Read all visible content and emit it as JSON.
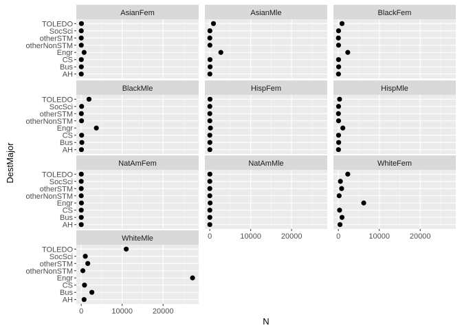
{
  "chart_data": {
    "type": "scatter",
    "facet_layout": "wrap 3 columns",
    "xlabel": "N",
    "ylabel": "DestMajor",
    "xlim": [
      -1200,
      28700
    ],
    "x_ticks": [
      0,
      10000,
      20000
    ],
    "x_tick_labels": [
      "0",
      "10000",
      "20000"
    ],
    "categories": [
      "TOLEDO",
      "SocSci",
      "otherSTM",
      "otherNonSTM",
      "Engr",
      "CS",
      "Bus",
      "AH"
    ],
    "grid": true,
    "legend": "none",
    "colors": {
      "panel_bg": "#ebebeb",
      "strip_bg": "#d9d9d9",
      "grid_major": "#ffffff",
      "point": "#000000"
    },
    "panels": [
      {
        "name": "AsianFem",
        "values": [
          50,
          10,
          5,
          15,
          700,
          20,
          25,
          10
        ]
      },
      {
        "name": "AsianMle",
        "values": [
          900,
          30,
          10,
          30,
          2700,
          50,
          80,
          20
        ]
      },
      {
        "name": "BlackFem",
        "values": [
          900,
          50,
          10,
          50,
          2300,
          50,
          80,
          30
        ]
      },
      {
        "name": "BlackMle",
        "values": [
          1900,
          100,
          30,
          80,
          3700,
          100,
          150,
          50
        ]
      },
      {
        "name": "HispFem",
        "values": [
          50,
          10,
          5,
          15,
          150,
          10,
          20,
          10
        ]
      },
      {
        "name": "HispMle",
        "values": [
          300,
          50,
          20,
          50,
          1100,
          50,
          80,
          30
        ]
      },
      {
        "name": "NatAmFem",
        "values": [
          20,
          5,
          5,
          5,
          50,
          5,
          10,
          5
        ]
      },
      {
        "name": "NatAmMle",
        "values": [
          20,
          5,
          5,
          5,
          80,
          10,
          10,
          5
        ]
      },
      {
        "name": "WhiteFem",
        "values": [
          2300,
          500,
          800,
          200,
          6200,
          300,
          900,
          400
        ]
      },
      {
        "name": "WhiteMle",
        "values": [
          11000,
          1000,
          1600,
          400,
          27200,
          800,
          2600,
          700
        ]
      }
    ]
  }
}
